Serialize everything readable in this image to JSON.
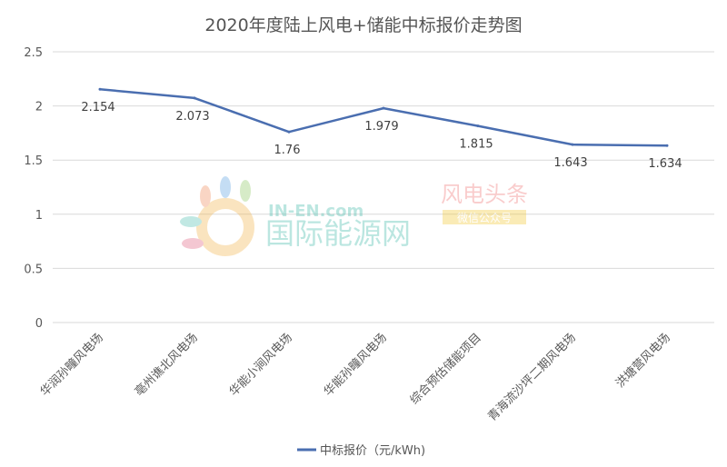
{
  "chart_data": {
    "type": "line",
    "title": "2020年度陆上风电+储能中标报价走势图",
    "categories": [
      "华润孙疃风电场",
      "亳州谯北风电场",
      "华能小涧风电场",
      "华能孙疃风电场",
      "综合预估储能项目",
      "青海流沙坪二期风电场",
      "洪塘营风电场"
    ],
    "series": [
      {
        "name": "中标报价（元/kWh)",
        "values": [
          2.154,
          2.073,
          1.76,
          1.979,
          1.815,
          1.643,
          1.634
        ],
        "color": "#4a6eb0"
      }
    ],
    "data_labels": [
      "2.154",
      "2.073",
      "1.76",
      "1.979",
      "1.815",
      "1.643",
      "1.634"
    ],
    "ylim": [
      0,
      2.5
    ],
    "yticks": [
      "0",
      "0.5",
      "1",
      "1.5",
      "2",
      "2.5"
    ],
    "ytick_values": [
      0,
      0.5,
      1,
      1.5,
      2,
      2.5
    ],
    "grid": true,
    "legend": "bottom-center",
    "xlabel": "",
    "ylabel": ""
  },
  "watermark": {
    "brand": "IN-EN.com",
    "name": "国际能源网",
    "tag": "风电头条",
    "sub": "微信公众号"
  }
}
